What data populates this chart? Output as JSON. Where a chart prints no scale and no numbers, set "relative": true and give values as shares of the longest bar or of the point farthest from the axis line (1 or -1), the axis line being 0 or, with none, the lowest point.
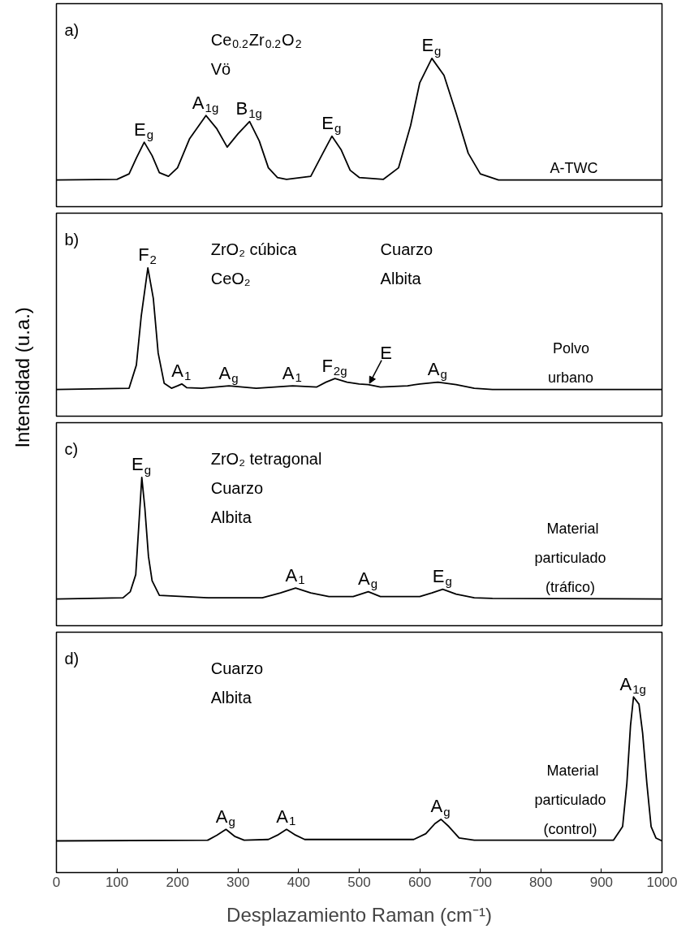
{
  "chart_data": [
    {
      "type": "line",
      "relative": true,
      "title": "a)",
      "subtitle": "A-TWC",
      "xlim": [
        0,
        1000
      ],
      "tick_labels": false,
      "color": "#000000",
      "x": [
        0,
        100,
        120,
        132,
        145,
        158,
        170,
        185,
        200,
        220,
        247,
        265,
        282,
        300,
        319,
        335,
        350,
        365,
        380,
        420,
        440,
        455,
        470,
        485,
        500,
        540,
        565,
        585,
        600,
        620,
        640,
        660,
        680,
        700,
        730,
        1000
      ],
      "values": [
        0,
        0.005,
        0.05,
        0.18,
        0.31,
        0.2,
        0.06,
        0.03,
        0.1,
        0.34,
        0.53,
        0.42,
        0.27,
        0.38,
        0.48,
        0.32,
        0.1,
        0.02,
        0.005,
        0.03,
        0.22,
        0.36,
        0.25,
        0.08,
        0.02,
        0.005,
        0.1,
        0.45,
        0.8,
        1,
        0.86,
        0.55,
        0.22,
        0.05,
        0,
        0
      ],
      "annotations": [
        "Ce$_{0.2}$Zr$_{0.2}$O$_{2}$",
        "Vö",
        {
          "text": "E$_{g}$",
          "x": 145,
          "y": 0.31
        },
        {
          "text": "A$_{1g}$",
          "x": 247,
          "y": 0.53
        },
        {
          "text": "B$_{1g}$",
          "x": 319,
          "y": 0.48
        },
        {
          "text": "E$_{g}$",
          "x": 455,
          "y": 0.36
        },
        {
          "text": "E$_{g}$",
          "x": 620,
          "y": 1
        }
      ]
    },
    {
      "type": "line",
      "relative": true,
      "title": "b)",
      "subtitle": "Polvo urbano",
      "ylabel": "Intensidad (u.a.)",
      "xlim": [
        0,
        1000
      ],
      "tick_labels": false,
      "color": "#000000",
      "x": [
        0,
        120,
        132,
        140,
        151,
        160,
        168,
        178,
        190,
        200,
        207,
        215,
        240,
        285,
        330,
        390,
        430,
        445,
        460,
        480,
        500,
        515,
        535,
        580,
        600,
        630,
        660,
        690,
        720,
        1000
      ],
      "values": [
        0,
        0.01,
        0.2,
        0.6,
        1,
        0.75,
        0.3,
        0.05,
        0.01,
        0.03,
        0.045,
        0.015,
        0.01,
        0.03,
        0.01,
        0.03,
        0.02,
        0.06,
        0.09,
        0.06,
        0.045,
        0.04,
        0.02,
        0.03,
        0.045,
        0.06,
        0.04,
        0.01,
        0,
        0
      ],
      "annotations": [
        "ZrO₂ cúbica",
        "CeO₂",
        "Cuarzo",
        "Albita",
        {
          "text": "F$_{2}$",
          "x": 151,
          "y": 1
        },
        {
          "text": "A$_{1}$",
          "x": 207,
          "y": 0.045
        },
        {
          "text": "A$_{g}$",
          "x": 285,
          "y": 0.03
        },
        {
          "text": "A$_{1}$",
          "x": 390,
          "y": 0.03
        },
        {
          "text": "F$_{2g}$",
          "x": 460,
          "y": 0.09
        },
        {
          "text": "E",
          "x": 515,
          "y": 0.04
        },
        {
          "text": "A$_{g}$",
          "x": 630,
          "y": 0.06
        }
      ]
    },
    {
      "type": "line",
      "relative": true,
      "title": "c)",
      "subtitle": "Material particulado (tráfico)",
      "xlim": [
        0,
        1000
      ],
      "tick_labels": false,
      "color": "#000000",
      "x": [
        0,
        110,
        122,
        131,
        136,
        141,
        146,
        152,
        158,
        170,
        250,
        340,
        370,
        395,
        420,
        450,
        490,
        515,
        535,
        600,
        620,
        638,
        660,
        690,
        720,
        1000
      ],
      "values": [
        0,
        0.01,
        0.06,
        0.2,
        0.6,
        1,
        0.75,
        0.35,
        0.15,
        0.03,
        0.01,
        0.01,
        0.05,
        0.09,
        0.05,
        0.02,
        0.02,
        0.06,
        0.02,
        0.02,
        0.05,
        0.08,
        0.04,
        0.01,
        0.005,
        0
      ],
      "annotations": [
        "ZrO₂ tetragonal",
        "Cuarzo",
        "Albita",
        {
          "text": "E$_{g}$",
          "x": 141,
          "y": 1
        },
        {
          "text": "A$_{1}$",
          "x": 395,
          "y": 0.09
        },
        {
          "text": "A$_{g}$",
          "x": 515,
          "y": 0.06
        },
        {
          "text": "E$_{g}$",
          "x": 638,
          "y": 0.08
        }
      ]
    },
    {
      "type": "line",
      "relative": true,
      "title": "d)",
      "subtitle": "Material particulado (control)",
      "xlabel": "Desplazamiento Raman (cm⁻¹)",
      "xlim": [
        0,
        1000
      ],
      "xticks": [
        0,
        100,
        200,
        300,
        400,
        500,
        600,
        700,
        800,
        900,
        1000
      ],
      "tick_labels": "x",
      "color": "#000000",
      "x": [
        0,
        250,
        265,
        280,
        295,
        310,
        350,
        365,
        380,
        395,
        410,
        590,
        610,
        625,
        635,
        648,
        665,
        690,
        920,
        935,
        942,
        948,
        953,
        962,
        968,
        975,
        982,
        990,
        1000
      ],
      "values": [
        0,
        0.005,
        0.04,
        0.08,
        0.03,
        0.005,
        0.01,
        0.04,
        0.08,
        0.04,
        0.01,
        0.01,
        0.05,
        0.12,
        0.15,
        0.1,
        0.02,
        0.005,
        0.005,
        0.1,
        0.4,
        0.8,
        1,
        0.95,
        0.75,
        0.4,
        0.1,
        0.02,
        0
      ],
      "annotations": [
        "Cuarzo",
        "Albita",
        {
          "text": "A$_{g}$",
          "x": 280,
          "y": 0.08
        },
        {
          "text": "A$_{1}$",
          "x": 380,
          "y": 0.08
        },
        {
          "text": "A$_{g}$",
          "x": 635,
          "y": 0.15
        },
        {
          "text": "A$_{1g}$",
          "x": 953,
          "y": 1
        }
      ]
    }
  ]
}
